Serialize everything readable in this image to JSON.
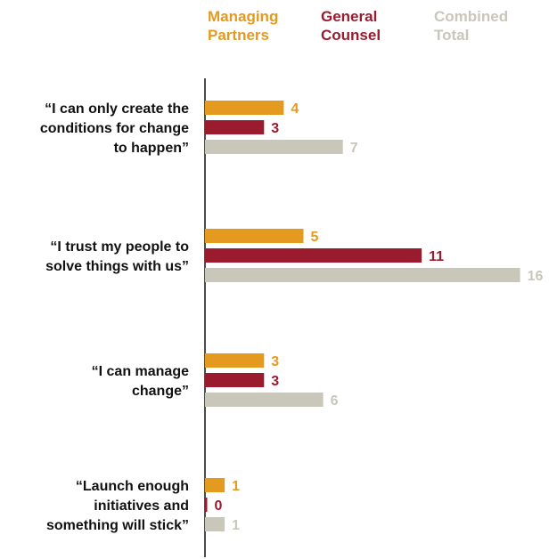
{
  "chart_data": {
    "type": "bar",
    "orientation": "horizontal",
    "categories": [
      "“I can only create the conditions for change to happen”",
      "“I trust my people to solve things with us”",
      "“I can manage change”",
      "“Launch enough initiatives and something will stick”"
    ],
    "category_lines": [
      [
        "“I can only create the",
        "conditions for change",
        "to happen”"
      ],
      [
        "“I trust my people to",
        "solve things with us”"
      ],
      [
        "“I can manage",
        "change”"
      ],
      [
        "“Launch enough",
        "initiatives and",
        "something will stick”"
      ]
    ],
    "series": [
      {
        "name": "Managing Partners",
        "name_lines": [
          "Managing",
          "Partners"
        ],
        "color": "#E39A1E",
        "values": [
          4,
          5,
          3,
          1
        ]
      },
      {
        "name": "General Counsel",
        "name_lines": [
          "General",
          "Counsel"
        ],
        "color": "#9B1B2E",
        "values": [
          3,
          11,
          3,
          0
        ]
      },
      {
        "name": "Combined Total",
        "name_lines": [
          "Combined",
          "Total"
        ],
        "color": "#C9C6BA",
        "values": [
          7,
          16,
          6,
          1
        ]
      }
    ],
    "xlim": [
      0,
      16
    ],
    "legend": "top",
    "grid": false,
    "title": "",
    "xlabel": "",
    "ylabel": ""
  }
}
